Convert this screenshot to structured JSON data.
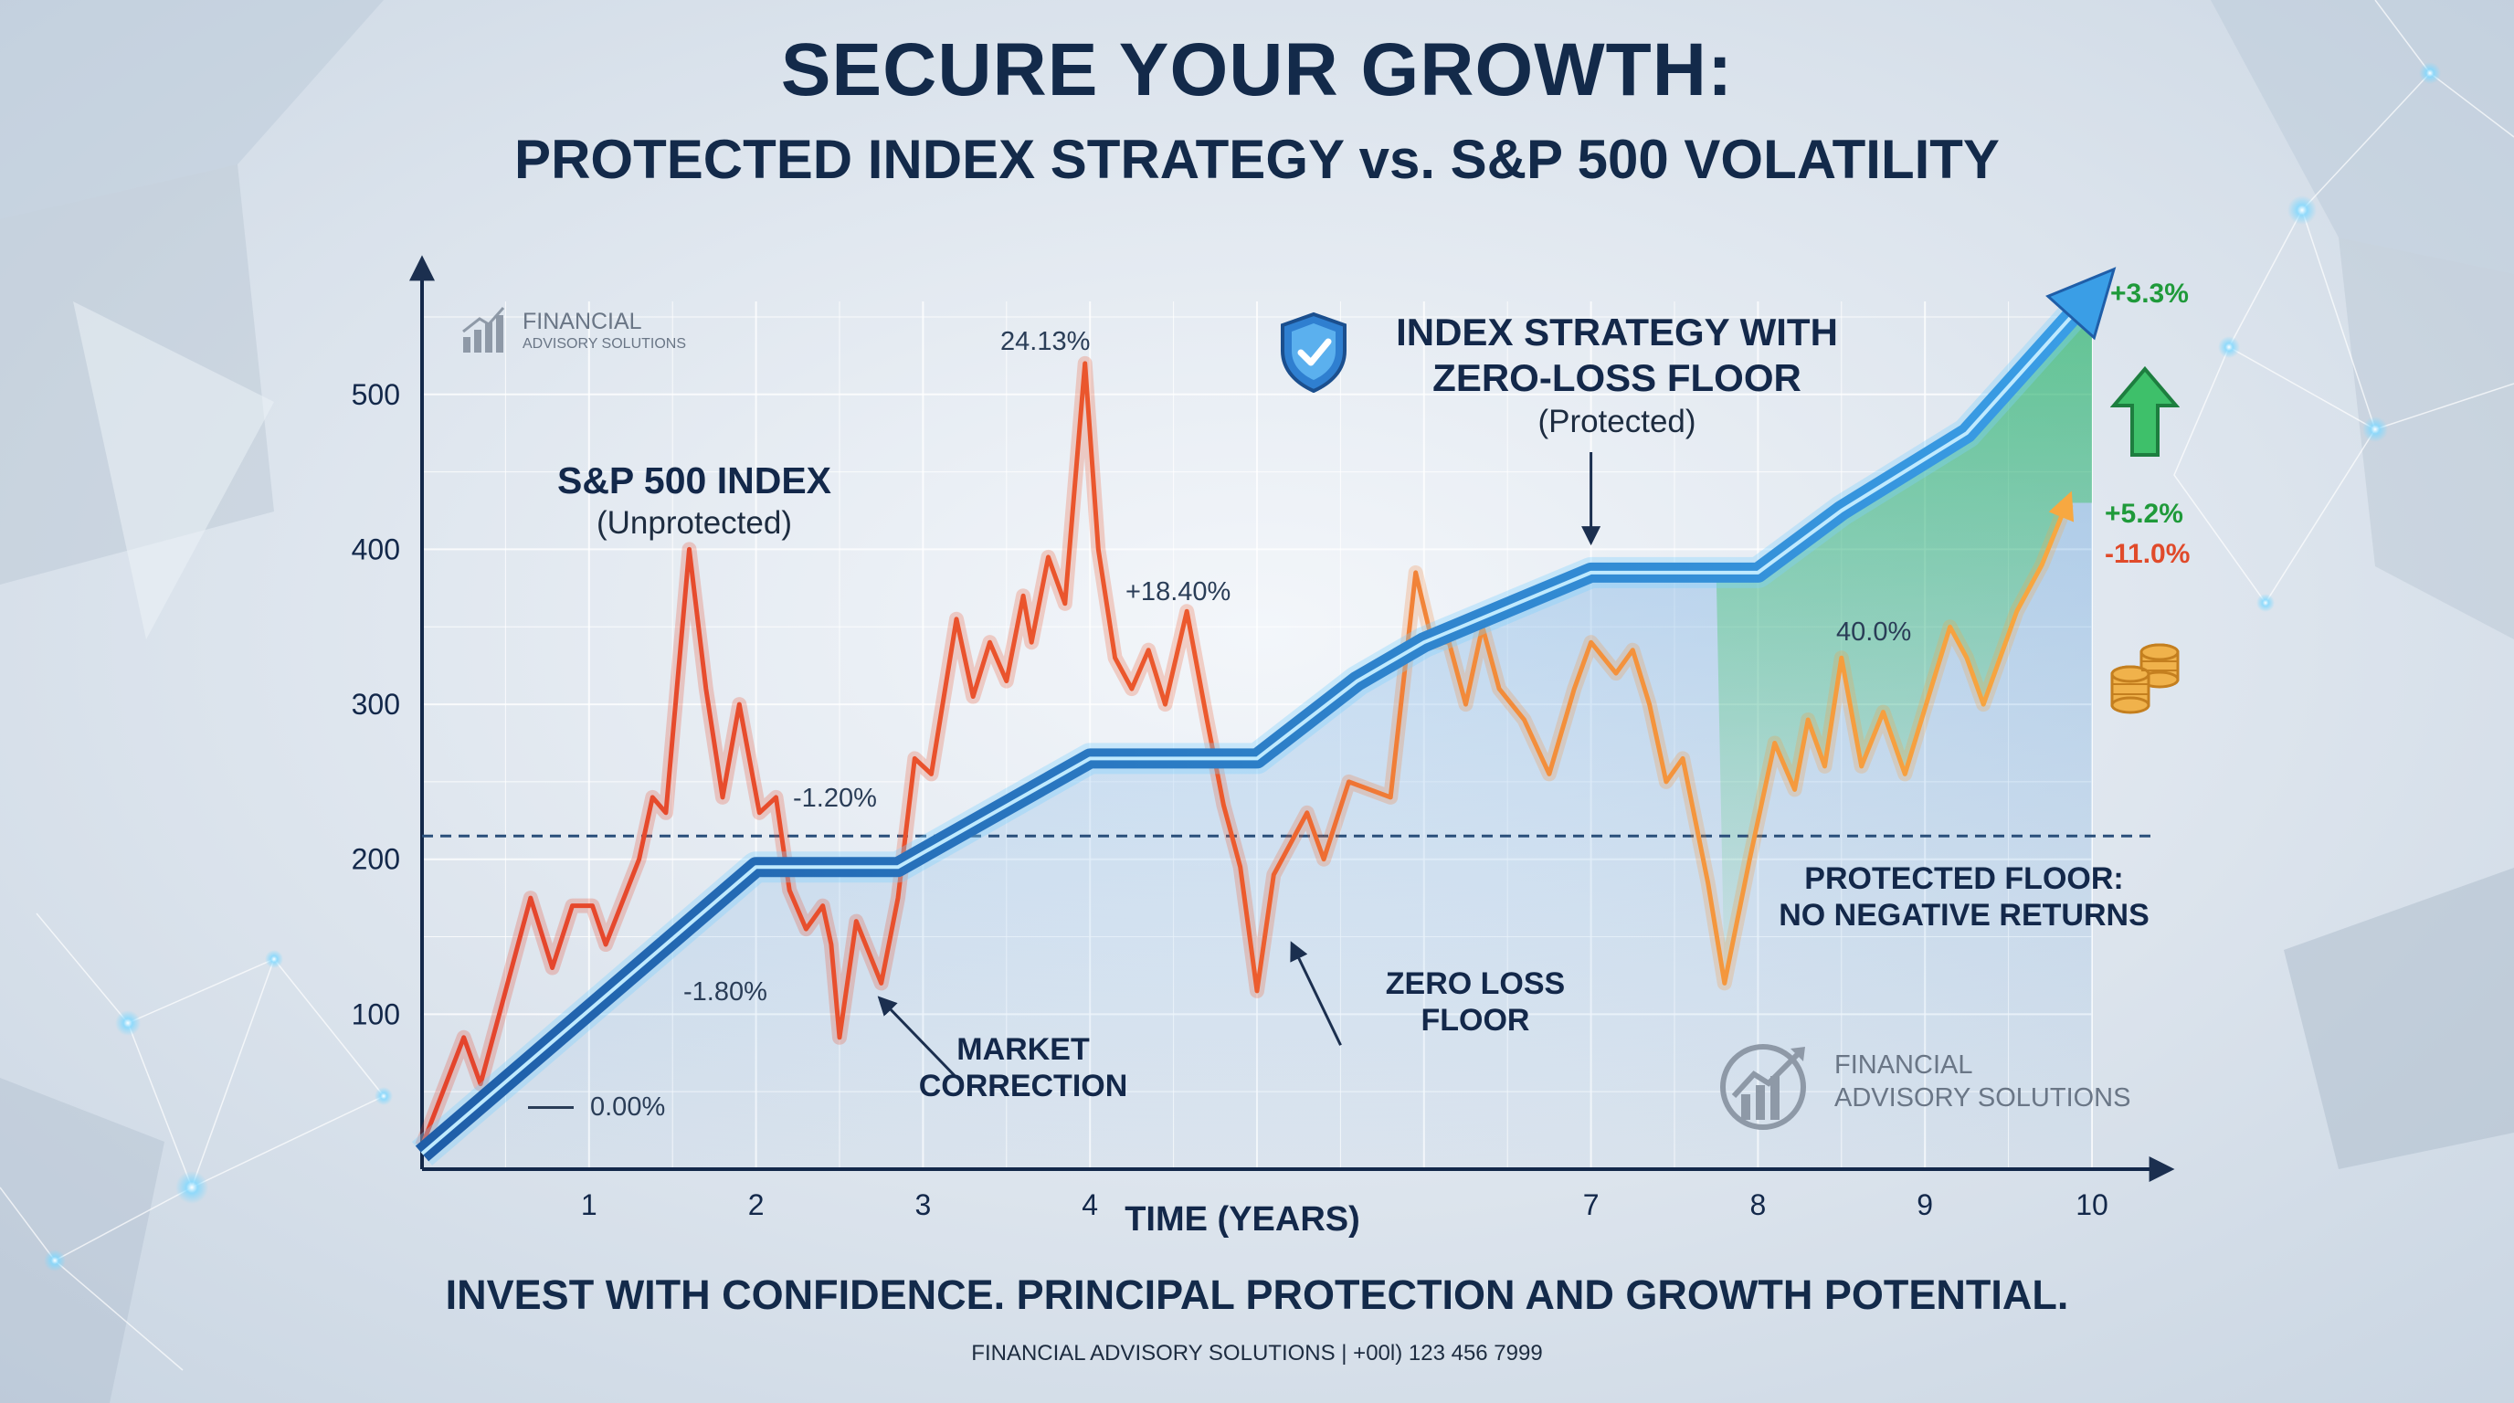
{
  "header": {
    "title": "SECURE YOUR GROWTH:",
    "subtitle": "PROTECTED INDEX STRATEGY vs. S&P 500 VOLATILITY"
  },
  "footer": {
    "tagline": "INVEST WITH CONFIDENCE. PRINCIPAL PROTECTION AND GROWTH POTENTIAL.",
    "contact": "FINANCIAL ADVISORY SOLUTIONS | +00l) 123 456 7999"
  },
  "logo_small": {
    "line1": "FINANCIAL",
    "line2": "ADVISORY SOLUTIONS"
  },
  "logo_large": {
    "line1": "FINANCIAL",
    "line2": "ADVISORY SOLUTIONS"
  },
  "colors": {
    "title": "#132a4a",
    "sp500_red": "#e4432c",
    "sp500_orange": "#f59a3c",
    "index_blue": "#2f86d6",
    "floor_line": "#2a4f7a",
    "positive_green": "#1f9a3a",
    "negative_red": "#e04a2a",
    "coin": "#e9a23b"
  },
  "icons": {
    "badge": "shield-check-icon",
    "gain": "up-arrow-icon",
    "coins": "coin-stack-icon"
  },
  "chart_data": {
    "type": "line",
    "xlabel": "TIME (YEARS)",
    "ylabel": "",
    "x_ticks": [
      "1",
      "2",
      "3",
      "4",
      "7",
      "8",
      "9",
      "10"
    ],
    "x_tick_values": [
      1,
      2,
      3,
      4,
      7,
      8,
      9,
      10
    ],
    "y_ticks": [
      "100",
      "200",
      "300",
      "400",
      "500"
    ],
    "y_tick_values": [
      100,
      200,
      300,
      400,
      500
    ],
    "xlim": [
      0,
      10
    ],
    "ylim": [
      0,
      560
    ],
    "grid": true,
    "floor_value": 215,
    "series": [
      {
        "name": "S&P 500 INDEX",
        "note": "(Unprotected)",
        "color": "#e4432c",
        "points": [
          [
            0,
            15
          ],
          [
            0.25,
            85
          ],
          [
            0.35,
            55
          ],
          [
            0.65,
            175
          ],
          [
            0.78,
            130
          ],
          [
            0.9,
            170
          ],
          [
            1.02,
            170
          ],
          [
            1.1,
            145
          ],
          [
            1.3,
            200
          ],
          [
            1.38,
            240
          ],
          [
            1.46,
            230
          ],
          [
            1.6,
            400
          ],
          [
            1.7,
            310
          ],
          [
            1.8,
            240
          ],
          [
            1.9,
            300
          ],
          [
            2.02,
            230
          ],
          [
            2.12,
            240
          ],
          [
            2.2,
            180
          ],
          [
            2.3,
            155
          ],
          [
            2.4,
            170
          ],
          [
            2.45,
            145
          ],
          [
            2.5,
            85
          ],
          [
            2.6,
            160
          ],
          [
            2.75,
            120
          ],
          [
            2.85,
            175
          ],
          [
            2.95,
            265
          ],
          [
            3.05,
            255
          ],
          [
            3.2,
            355
          ],
          [
            3.3,
            305
          ],
          [
            3.4,
            340
          ],
          [
            3.5,
            315
          ],
          [
            3.6,
            370
          ],
          [
            3.65,
            340
          ],
          [
            3.75,
            395
          ],
          [
            3.85,
            365
          ],
          [
            3.97,
            520
          ],
          [
            4.05,
            400
          ],
          [
            4.15,
            330
          ],
          [
            4.25,
            310
          ],
          [
            4.35,
            335
          ],
          [
            4.45,
            300
          ],
          [
            4.58,
            360
          ],
          [
            4.7,
            290
          ],
          [
            4.8,
            235
          ],
          [
            4.9,
            195
          ],
          [
            5.0,
            115
          ],
          [
            5.1,
            190
          ],
          [
            5.3,
            230
          ],
          [
            5.4,
            200
          ],
          [
            5.55,
            250
          ],
          [
            5.8,
            240
          ],
          [
            5.95,
            385
          ],
          [
            6.05,
            340
          ],
          [
            6.15,
            340
          ],
          [
            6.25,
            300
          ],
          [
            6.35,
            350
          ],
          [
            6.45,
            310
          ],
          [
            6.6,
            290
          ],
          [
            6.75,
            255
          ],
          [
            6.9,
            310
          ],
          [
            7.0,
            340
          ],
          [
            7.15,
            320
          ],
          [
            7.25,
            335
          ],
          [
            7.35,
            300
          ],
          [
            7.45,
            250
          ],
          [
            7.55,
            265
          ],
          [
            7.7,
            185
          ],
          [
            7.8,
            120
          ],
          [
            7.95,
            200
          ],
          [
            8.1,
            275
          ],
          [
            8.22,
            245
          ],
          [
            8.3,
            290
          ],
          [
            8.4,
            260
          ],
          [
            8.5,
            330
          ],
          [
            8.62,
            260
          ],
          [
            8.75,
            295
          ],
          [
            8.88,
            255
          ],
          [
            9.05,
            315
          ],
          [
            9.15,
            350
          ],
          [
            9.25,
            330
          ],
          [
            9.35,
            300
          ],
          [
            9.55,
            360
          ],
          [
            9.7,
            390
          ],
          [
            9.85,
            430
          ]
        ]
      },
      {
        "name": "INDEX STRATEGY WITH ZERO-LOSS FLOOR",
        "note": "(Protected)",
        "color": "#2f86d6",
        "points": [
          [
            0,
            10
          ],
          [
            2.0,
            195
          ],
          [
            2.85,
            195
          ],
          [
            4.0,
            265
          ],
          [
            5.0,
            265
          ],
          [
            5.6,
            315
          ],
          [
            6.0,
            340
          ],
          [
            7.0,
            385
          ],
          [
            8.0,
            385
          ],
          [
            8.5,
            425
          ],
          [
            9.25,
            475
          ],
          [
            10,
            565
          ]
        ]
      }
    ],
    "annotations": {
      "sp500_label": "S&P 500 INDEX",
      "sp500_note": "(Unprotected)",
      "index_label_line1": "INDEX STRATEGY WITH",
      "index_label_line2": "ZERO-LOSS FLOOR",
      "index_note": "(Protected)",
      "peak_value": "24.13%",
      "value_1": "+18.40%",
      "value_2": "-1.20%",
      "value_3": "-1.80%",
      "value_4": "0.00%",
      "value_5": "40.0%",
      "gain_top": "+3.3%",
      "gain_mid": "+5.2%",
      "loss_mid": "-11.0%",
      "market_correction_line1": "MARKET",
      "market_correction_line2": "CORRECTION",
      "zero_loss_line1": "ZERO LOSS",
      "zero_loss_line2": "FLOOR",
      "floor_line1": "PROTECTED FLOOR:",
      "floor_line2": "NO NEGATIVE RETURNS"
    }
  }
}
